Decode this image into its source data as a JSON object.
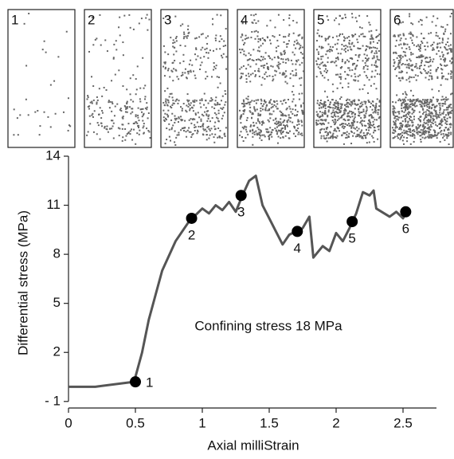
{
  "chart_data": {
    "type": "line",
    "title": null,
    "x_label": "Axial milliStrain",
    "y_label": "Differential stress (MPa)",
    "annotation": "Confining stress 18 MPa",
    "color": "#555555",
    "x": [
      0,
      0.2,
      0.49,
      0.55,
      0.6,
      0.65,
      0.7,
      0.8,
      0.9,
      0.95,
      1.0,
      1.05,
      1.1,
      1.15,
      1.2,
      1.25,
      1.3,
      1.35,
      1.4,
      1.45,
      1.5,
      1.55,
      1.6,
      1.65,
      1.7,
      1.75,
      1.8,
      1.83,
      1.9,
      1.95,
      2.0,
      2.05,
      2.1,
      2.15,
      2.2,
      2.25,
      2.28,
      2.3,
      2.4,
      2.45,
      2.5,
      2.53
    ],
    "values": [
      -0.1,
      -0.1,
      0.2,
      2,
      4,
      5.5,
      7,
      8.8,
      10,
      10.4,
      10.8,
      10.5,
      11,
      10.7,
      11.2,
      10.6,
      11.6,
      12.5,
      12.8,
      11,
      10.2,
      9.4,
      8.6,
      9.2,
      9.4,
      9.6,
      10.3,
      7.8,
      8.5,
      8.2,
      9.3,
      8.8,
      9.6,
      10.5,
      11.8,
      11.6,
      11.9,
      10.8,
      10.3,
      10.6,
      10.2,
      10.7
    ],
    "points": {
      "color": "#000000",
      "labels": [
        "1",
        "2",
        "3",
        "4",
        "5",
        "6"
      ],
      "x": [
        0.5,
        0.92,
        1.29,
        1.71,
        2.12,
        2.52
      ],
      "values": [
        0.2,
        10.2,
        11.6,
        9.4,
        10.0,
        10.6
      ]
    },
    "panel_labels": [
      "1",
      "2",
      "3",
      "4",
      "5",
      "6"
    ],
    "xlim": [
      0,
      2.75
    ],
    "ylim": [
      -1.4,
      14
    ],
    "xticks": [
      0,
      0.5,
      1,
      1.5,
      2,
      2.5
    ],
    "yticks": [
      {
        "value": -1,
        "label": "- 1"
      },
      2,
      5,
      8,
      11,
      14
    ]
  }
}
